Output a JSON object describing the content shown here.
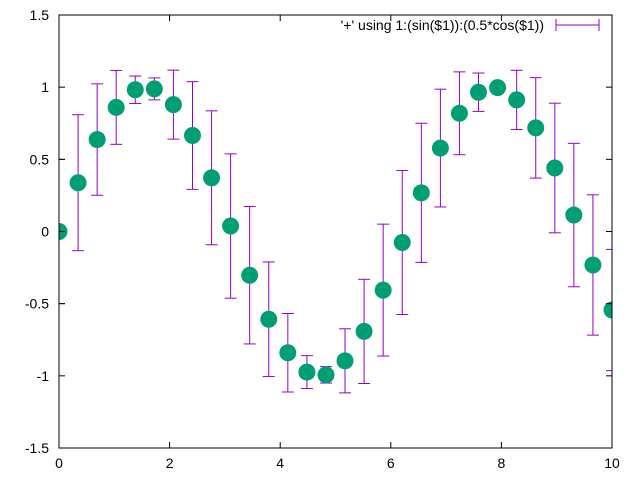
{
  "chart_data": {
    "type": "scatter",
    "title": "",
    "xlabel": "",
    "ylabel": "",
    "xlim": [
      0,
      10
    ],
    "ylim": [
      -1.5,
      1.5
    ],
    "xticks": [
      "0",
      "2",
      "4",
      "6",
      "8",
      "10"
    ],
    "yticks": [
      "-1.5",
      "-1",
      "-0.5",
      "0",
      "0.5",
      "1",
      "1.5"
    ],
    "grid": false,
    "legend_position": "top-right",
    "series": [
      {
        "name": "'+' using 1:(sin($1)):(0.5*cos($1))",
        "marker_color": "#009e73",
        "errorbar_color": "#9400d3",
        "points": [
          {
            "x": 0.0,
            "y": 0.0,
            "err": 0.5
          },
          {
            "x": 0.345,
            "y": 0.338,
            "err": 0.471
          },
          {
            "x": 0.69,
            "y": 0.637,
            "err": 0.386
          },
          {
            "x": 1.034,
            "y": 0.86,
            "err": 0.256
          },
          {
            "x": 1.379,
            "y": 0.982,
            "err": 0.095
          },
          {
            "x": 1.724,
            "y": 0.988,
            "err": 0.076
          },
          {
            "x": 2.069,
            "y": 0.879,
            "err": 0.239
          },
          {
            "x": 2.414,
            "y": 0.665,
            "err": 0.373
          },
          {
            "x": 2.759,
            "y": 0.372,
            "err": 0.464
          },
          {
            "x": 3.103,
            "y": 0.038,
            "err": 0.5
          },
          {
            "x": 3.448,
            "y": -0.303,
            "err": 0.476
          },
          {
            "x": 3.793,
            "y": -0.608,
            "err": 0.397
          },
          {
            "x": 4.138,
            "y": -0.84,
            "err": 0.272
          },
          {
            "x": 4.483,
            "y": -0.974,
            "err": 0.114
          },
          {
            "x": 4.828,
            "y": -0.993,
            "err": 0.057
          },
          {
            "x": 5.172,
            "y": -0.896,
            "err": 0.222
          },
          {
            "x": 5.517,
            "y": -0.692,
            "err": 0.361
          },
          {
            "x": 5.862,
            "y": -0.406,
            "err": 0.457
          },
          {
            "x": 6.207,
            "y": -0.076,
            "err": 0.499
          },
          {
            "x": 6.552,
            "y": 0.268,
            "err": 0.482
          },
          {
            "x": 6.897,
            "y": 0.578,
            "err": 0.408
          },
          {
            "x": 7.241,
            "y": 0.819,
            "err": 0.287
          },
          {
            "x": 7.586,
            "y": 0.965,
            "err": 0.133
          },
          {
            "x": 7.931,
            "y": 0.997,
            "err": 0.038
          },
          {
            "x": 8.276,
            "y": 0.912,
            "err": 0.205
          },
          {
            "x": 8.621,
            "y": 0.718,
            "err": 0.348
          },
          {
            "x": 8.966,
            "y": 0.44,
            "err": 0.449
          },
          {
            "x": 9.31,
            "y": 0.114,
            "err": 0.497
          },
          {
            "x": 9.655,
            "y": -0.232,
            "err": 0.486
          },
          {
            "x": 10.0,
            "y": -0.544,
            "err": 0.42
          }
        ]
      }
    ]
  }
}
